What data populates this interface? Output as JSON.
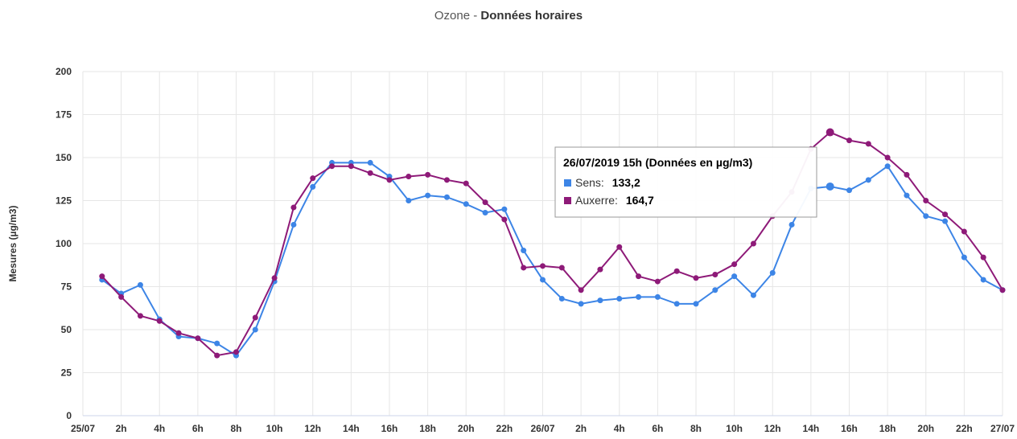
{
  "chart_data": {
    "type": "line",
    "title_prefix": "Ozone -",
    "title": "Données horaires",
    "y_label": "Mesures (µg/m3)",
    "categories": [
      "25/07",
      null,
      "2h",
      null,
      "4h",
      null,
      "6h",
      null,
      "8h",
      null,
      "10h",
      null,
      "12h",
      null,
      "14h",
      null,
      "16h",
      null,
      "18h",
      null,
      "20h",
      null,
      "22h",
      null,
      "26/07",
      null,
      "2h",
      null,
      "4h",
      null,
      "6h",
      null,
      "8h",
      null,
      "10h",
      null,
      "12h",
      null,
      "14h",
      null,
      "16h",
      null,
      "18h",
      null,
      "20h",
      null,
      "22h",
      null,
      "27/07"
    ],
    "series": [
      {
        "name": "Sens",
        "color": "#3d85e6",
        "values": [
          null,
          79,
          71,
          76,
          56,
          46,
          45,
          42,
          35,
          50,
          78,
          111,
          133,
          147,
          147,
          147,
          139,
          125,
          128,
          127,
          123,
          118,
          120,
          96,
          79,
          68,
          65,
          67,
          68,
          69,
          69,
          65,
          65,
          73,
          81,
          70,
          83,
          111,
          132,
          133.2,
          131,
          137,
          145,
          128,
          116,
          113,
          92,
          79,
          73
        ]
      },
      {
        "name": "Auxerre",
        "color": "#8e1a78",
        "values": [
          null,
          81,
          69,
          58,
          55,
          48,
          45,
          35,
          37,
          57,
          80,
          121,
          138,
          145,
          145,
          141,
          137,
          139,
          140,
          137,
          135,
          124,
          114,
          86,
          87,
          86,
          73,
          85,
          98,
          81,
          78,
          84,
          80,
          82,
          88,
          100,
          116,
          130,
          155,
          164.7,
          160,
          158,
          150,
          140,
          125,
          117,
          107,
          92,
          73
        ]
      }
    ],
    "ylim": [
      0,
      200
    ],
    "yticks": [
      0,
      25,
      50,
      75,
      100,
      125,
      150,
      175,
      200
    ],
    "grid": true,
    "tooltip": {
      "title": "26/07/2019 15h (Données en µg/m3)",
      "index": 39,
      "items": [
        {
          "label": "Sens:",
          "value_label": "133,2"
        },
        {
          "label": "Auxerre:",
          "value_label": "164,7"
        }
      ]
    }
  }
}
